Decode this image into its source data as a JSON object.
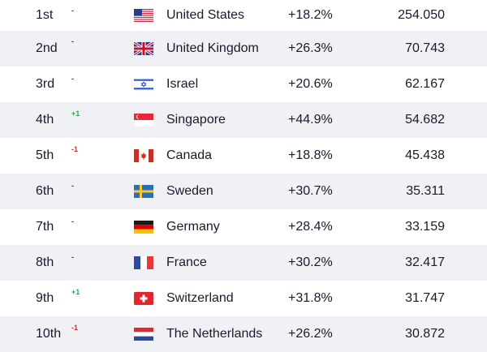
{
  "rows": [
    {
      "rank": "1st",
      "change": "-",
      "change_type": "same",
      "flag": "us-flag-icon",
      "country": "United States",
      "growth": "+18.2%",
      "value": "254.050"
    },
    {
      "rank": "2nd",
      "change": "-",
      "change_type": "same",
      "flag": "uk-flag-icon",
      "country": "United Kingdom",
      "growth": "+26.3%",
      "value": "70.743"
    },
    {
      "rank": "3rd",
      "change": "-",
      "change_type": "same",
      "flag": "israel-flag-icon",
      "country": "Israel",
      "growth": "+20.6%",
      "value": "62.167"
    },
    {
      "rank": "4th",
      "change": "+1",
      "change_type": "up",
      "flag": "singapore-flag-icon",
      "country": "Singapore",
      "growth": "+44.9%",
      "value": "54.682"
    },
    {
      "rank": "5th",
      "change": "-1",
      "change_type": "down",
      "flag": "canada-flag-icon",
      "country": "Canada",
      "growth": "+18.8%",
      "value": "45.438"
    },
    {
      "rank": "6th",
      "change": "-",
      "change_type": "same",
      "flag": "sweden-flag-icon",
      "country": "Sweden",
      "growth": "+30.7%",
      "value": "35.311"
    },
    {
      "rank": "7th",
      "change": "-",
      "change_type": "same",
      "flag": "germany-flag-icon",
      "country": "Germany",
      "growth": "+28.4%",
      "value": "33.159"
    },
    {
      "rank": "8th",
      "change": "-",
      "change_type": "same",
      "flag": "france-flag-icon",
      "country": "France",
      "growth": "+30.2%",
      "value": "32.417"
    },
    {
      "rank": "9th",
      "change": "+1",
      "change_type": "up",
      "flag": "switzerland-flag-icon",
      "country": "Switzerland",
      "growth": "+31.8%",
      "value": "31.747"
    },
    {
      "rank": "10th",
      "change": "-1",
      "change_type": "down",
      "flag": "netherlands-flag-icon",
      "country": "The Netherlands",
      "growth": "+26.2%",
      "value": "30.872"
    }
  ],
  "colors": {
    "row_alt": "#f0f1f5",
    "up": "#2fa84f",
    "down": "#d82c2c"
  }
}
